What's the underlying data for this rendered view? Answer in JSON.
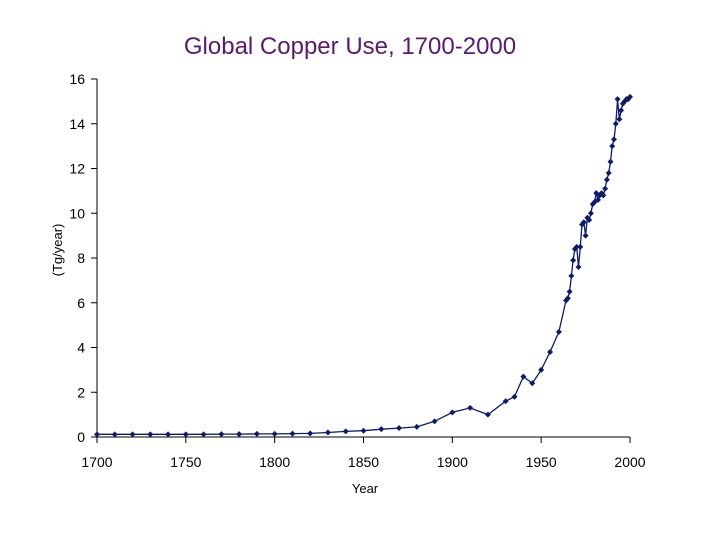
{
  "chart_data": {
    "type": "line",
    "title": "Global Copper Use, 1700-2000",
    "xlabel": "Year",
    "ylabel": "(Tg/year)",
    "xlim": [
      1700,
      2000
    ],
    "ylim": [
      0,
      16
    ],
    "xticks": [
      1700,
      1750,
      1800,
      1850,
      1900,
      1950,
      2000
    ],
    "yticks": [
      0,
      2,
      4,
      6,
      8,
      10,
      12,
      14,
      16
    ],
    "grid": false,
    "legend": "none",
    "colors": {
      "series": "#0d1b6e",
      "title": "#5a1a6e"
    },
    "series": [
      {
        "x": [
          1700,
          1710,
          1720,
          1730,
          1740,
          1750,
          1760,
          1770,
          1780,
          1790,
          1800,
          1810,
          1820,
          1830,
          1840,
          1850,
          1860,
          1870,
          1880,
          1890,
          1900,
          1910,
          1920,
          1930,
          1935,
          1940,
          1945,
          1950,
          1955,
          1960,
          1964,
          1965,
          1966,
          1967,
          1968,
          1969,
          1970,
          1971,
          1972,
          1973,
          1974,
          1975,
          1976,
          1977,
          1978,
          1979,
          1980,
          1981,
          1982,
          1983,
          1984,
          1985,
          1986,
          1987,
          1988,
          1989,
          1990,
          1991,
          1992,
          1993,
          1994,
          1995,
          1996,
          1997,
          1998,
          1999,
          2000
        ],
        "y": [
          0.12,
          0.12,
          0.12,
          0.12,
          0.12,
          0.12,
          0.12,
          0.13,
          0.13,
          0.14,
          0.14,
          0.15,
          0.16,
          0.2,
          0.25,
          0.28,
          0.35,
          0.4,
          0.45,
          0.7,
          1.1,
          1.3,
          1.0,
          1.6,
          1.8,
          2.7,
          2.4,
          3.0,
          3.8,
          4.7,
          6.1,
          6.2,
          6.5,
          7.2,
          7.9,
          8.4,
          8.5,
          7.6,
          8.5,
          9.5,
          9.6,
          9.0,
          9.8,
          9.7,
          10.0,
          10.4,
          10.5,
          10.9,
          10.6,
          10.8,
          10.9,
          10.8,
          11.1,
          11.5,
          11.8,
          12.3,
          13.0,
          13.3,
          14.0,
          15.1,
          14.2,
          14.6,
          14.9,
          15.0,
          15.1,
          15.1,
          15.2
        ]
      }
    ]
  }
}
